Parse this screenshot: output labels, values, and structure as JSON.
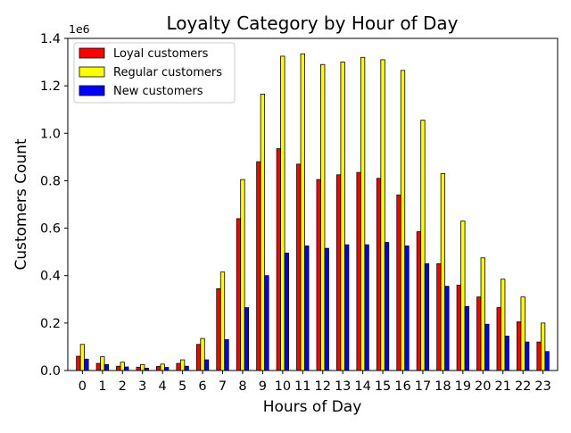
{
  "chart_data": {
    "type": "bar",
    "title": "Loyalty Category by Hour of Day",
    "xlabel": "Hours of Day",
    "ylabel": "Customers Count",
    "y_offset_label": "1e6",
    "categories": [
      "0",
      "1",
      "2",
      "3",
      "4",
      "5",
      "6",
      "7",
      "8",
      "9",
      "10",
      "11",
      "12",
      "13",
      "14",
      "15",
      "16",
      "17",
      "18",
      "19",
      "20",
      "21",
      "22",
      "23"
    ],
    "ylim": [
      0,
      1400000
    ],
    "yticks": [
      0,
      200000,
      400000,
      600000,
      800000,
      1000000,
      1200000,
      1400000
    ],
    "ytick_labels": [
      "0.0",
      "0.2",
      "0.4",
      "0.6",
      "0.8",
      "1.0",
      "1.2",
      "1.4"
    ],
    "grid": false,
    "legend_position": "top-left",
    "series": [
      {
        "name": "Loyal customers",
        "color": "#ff0000",
        "values": [
          60000,
          30000,
          18000,
          14000,
          17000,
          30000,
          110000,
          345000,
          640000,
          880000,
          935000,
          870000,
          805000,
          825000,
          835000,
          810000,
          740000,
          585000,
          450000,
          360000,
          310000,
          265000,
          205000,
          120000
        ]
      },
      {
        "name": "Regular customers",
        "color": "#ffff00",
        "values": [
          110000,
          58000,
          35000,
          25000,
          27000,
          45000,
          135000,
          415000,
          805000,
          1165000,
          1325000,
          1335000,
          1290000,
          1300000,
          1320000,
          1310000,
          1265000,
          1055000,
          830000,
          630000,
          475000,
          385000,
          310000,
          200000
        ]
      },
      {
        "name": "New customers",
        "color": "#0000ff",
        "values": [
          48000,
          25000,
          15000,
          10000,
          13000,
          18000,
          45000,
          130000,
          265000,
          400000,
          495000,
          525000,
          515000,
          530000,
          530000,
          540000,
          525000,
          450000,
          355000,
          270000,
          195000,
          145000,
          120000,
          80000
        ]
      }
    ]
  }
}
